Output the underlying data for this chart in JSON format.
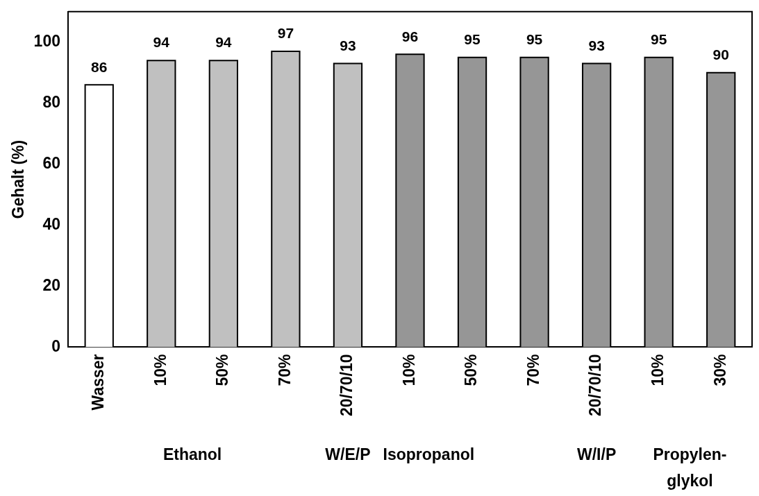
{
  "chart_data": {
    "type": "bar",
    "ylabel": "Gehalt (%)",
    "categories": [
      "Wasser",
      "10%",
      "50%",
      "70%",
      "20/70/10",
      "10%",
      "50%",
      "70%",
      "20/70/10",
      "10%",
      "30%"
    ],
    "values": [
      86,
      94,
      94,
      97,
      93,
      96,
      95,
      95,
      93,
      95,
      90
    ],
    "colors": [
      "#ffffff",
      "#c0c0c0",
      "#c0c0c0",
      "#c0c0c0",
      "#c0c0c0",
      "#969696",
      "#969696",
      "#969696",
      "#969696",
      "#969696",
      "#969696"
    ],
    "ylim": [
      0,
      110
    ],
    "yticks": [
      0,
      20,
      40,
      60,
      80,
      100
    ],
    "grid": false,
    "legend": false,
    "data_labels": true,
    "annotations": [
      "Ethanol",
      "W/E/P",
      "Isopropanol",
      "W/I/P",
      "Propylen-\nglykol"
    ]
  }
}
